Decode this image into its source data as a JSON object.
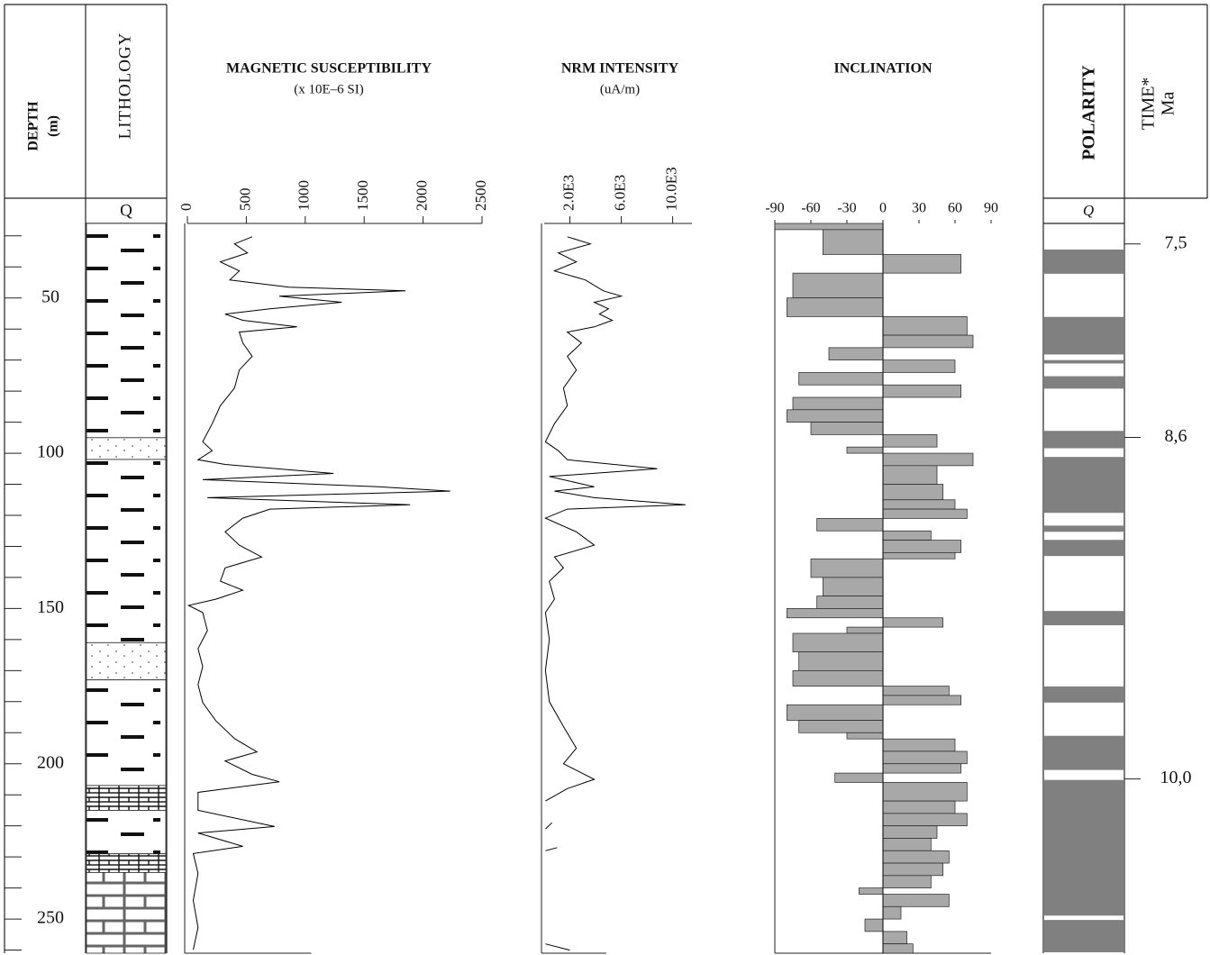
{
  "chart_data": [
    {
      "type": "depth",
      "title": "DEPTH",
      "subtitle": "(m)",
      "ylim": [
        26,
        261
      ],
      "yticks": [
        50,
        100,
        150,
        200,
        250
      ],
      "yminorticks": [
        30,
        40,
        60,
        70,
        80,
        90,
        110,
        120,
        130,
        140,
        160,
        170,
        180,
        190,
        210,
        220,
        230,
        240,
        260
      ]
    },
    {
      "type": "lithology",
      "title": "LITHOLOGY",
      "label": "Q",
      "layers": [
        {
          "top": 26,
          "bottom": 95,
          "pattern": "clay"
        },
        {
          "top": 95,
          "bottom": 102,
          "pattern": "sand"
        },
        {
          "top": 102,
          "bottom": 161,
          "pattern": "clay"
        },
        {
          "top": 161,
          "bottom": 173,
          "pattern": "sand"
        },
        {
          "top": 173,
          "bottom": 207,
          "pattern": "clay"
        },
        {
          "top": 207,
          "bottom": 215,
          "pattern": "limestone"
        },
        {
          "top": 215,
          "bottom": 229,
          "pattern": "clay"
        },
        {
          "top": 229,
          "bottom": 235,
          "pattern": "limestone"
        },
        {
          "top": 235,
          "bottom": 261,
          "pattern": "dolomite"
        }
      ]
    },
    {
      "type": "line",
      "title": "MAGNETIC SUSCEPTIBILITY",
      "subtitle": "(x 10E–6 SI)",
      "color": "#000000",
      "xlim": [
        0,
        2500
      ],
      "xticks": [
        0,
        500,
        1000,
        1500,
        2000,
        2500
      ],
      "depth": [
        30.3,
        32.6,
        35.5,
        38.4,
        41.3,
        44.2,
        46.5,
        47.7,
        49.4,
        51.4,
        53.5,
        55.2,
        57.2,
        59.3,
        61.0,
        64.5,
        68.8,
        73.2,
        79.0,
        84.7,
        90.5,
        96.3,
        99.2,
        102.1,
        103.6,
        106.5,
        108.5,
        110.8,
        112.2,
        114.3,
        116.6,
        118.0,
        120.9,
        125.3,
        129.6,
        133.4,
        136.9,
        141.2,
        144.1,
        147.0,
        149.0,
        151.3,
        157.1,
        162.9,
        168.7,
        174.5,
        180.3,
        186.1,
        191.9,
        196.2,
        199.1,
        203.4,
        205.8,
        209.2,
        215.0,
        220.2,
        222.3,
        226.6,
        228.9,
        235.3,
        244.0,
        252.7,
        259.9
      ],
      "values": [
        550,
        400,
        510,
        280,
        440,
        360,
        860,
        1850,
        780,
        1310,
        700,
        320,
        470,
        930,
        440,
        470,
        550,
        440,
        400,
        280,
        210,
        130,
        210,
        90,
        320,
        1240,
        130,
        1620,
        2230,
        170,
        1890,
        700,
        470,
        320,
        440,
        630,
        320,
        280,
        470,
        240,
        10,
        130,
        170,
        90,
        130,
        90,
        130,
        240,
        400,
        590,
        320,
        550,
        780,
        90,
        90,
        740,
        90,
        470,
        50,
        90,
        50,
        90,
        50
      ]
    },
    {
      "type": "line",
      "title": "NRM INTENSITY",
      "subtitle": "(uA/m)",
      "color": "#000000",
      "xlim": [
        0,
        11500
      ],
      "xticks": [
        {
          "value": 2000,
          "label": "2.0E3"
        },
        {
          "value": 6000,
          "label": "6.0E3"
        },
        {
          "value": 10000,
          "label": "10.0E3"
        }
      ],
      "depth": [
        30.3,
        32.6,
        35.5,
        38.4,
        41.3,
        44.2,
        47.7,
        49.4,
        51.4,
        53.5,
        55.2,
        57.2,
        59.3,
        61.0,
        64.5,
        68.8,
        73.2,
        79.0,
        84.7,
        90.5,
        96.3,
        99.2,
        102.1,
        105.0,
        107.5,
        110.8,
        112.2,
        114.3,
        116.6,
        118.0,
        120.9,
        125.3,
        129.6,
        133.4,
        136.9,
        141.2,
        147.0,
        151.3,
        160,
        170,
        180,
        188,
        195,
        200,
        205,
        208,
        212,
        215,
        219,
        221,
        224,
        227,
        228,
        240,
        258,
        260
      ],
      "values": [
        1800,
        3600,
        1100,
        2500,
        800,
        3200,
        4600,
        6000,
        3900,
        5000,
        4300,
        5300,
        3900,
        1800,
        2900,
        1800,
        2500,
        1500,
        1800,
        800,
        100,
        1100,
        1800,
        8800,
        400,
        3900,
        800,
        3900,
        11000,
        1800,
        100,
        2500,
        3900,
        800,
        1500,
        400,
        800,
        100,
        400,
        100,
        400,
        1500,
        2500,
        1500,
        3900,
        1800,
        100,
        null,
        600,
        100,
        null,
        1000,
        100,
        null,
        100,
        2000
      ]
    },
    {
      "type": "step",
      "title": "INCLINATION",
      "color": "#a8a8a8",
      "xlim": [
        -90,
        90
      ],
      "xticks": [
        -90,
        -60,
        -30,
        0,
        30,
        60,
        90
      ],
      "depth": [
        26,
        28,
        36,
        42,
        50,
        56,
        62,
        66,
        70,
        74,
        78,
        82,
        86,
        90,
        94,
        98,
        100,
        104,
        110,
        115,
        118,
        121,
        125,
        128,
        132,
        134,
        140,
        146,
        150,
        153,
        156,
        158,
        164,
        170,
        175,
        178,
        181,
        186,
        190,
        192,
        196,
        200,
        203,
        206,
        212,
        216,
        220,
        224,
        228,
        232,
        236,
        240,
        242,
        246,
        250,
        254,
        258
      ],
      "values": [
        -90,
        -50,
        65,
        -75,
        -80,
        70,
        75,
        -45,
        60,
        -70,
        65,
        -75,
        -80,
        -60,
        45,
        -30,
        75,
        45,
        50,
        60,
        70,
        -55,
        40,
        65,
        60,
        -60,
        -50,
        -55,
        -80,
        50,
        -30,
        -75,
        -70,
        -75,
        55,
        65,
        -80,
        -70,
        -30,
        60,
        70,
        65,
        -40,
        70,
        60,
        70,
        45,
        40,
        55,
        50,
        40,
        -20,
        55,
        15,
        -15,
        20,
        25
      ]
    },
    {
      "type": "polarity",
      "title": "POLARITY",
      "label": "Q",
      "color": "#808080",
      "normal": [
        [
          34.4,
          42.2
        ],
        [
          56.1,
          68.2
        ],
        [
          70.0,
          71.1
        ],
        [
          75.2,
          79.2
        ],
        [
          92.8,
          98.4
        ],
        [
          101.2,
          119.2
        ],
        [
          123.3,
          125.3
        ],
        [
          127.9,
          133.1
        ],
        [
          150.8,
          155.4
        ],
        [
          175.1,
          180.3
        ],
        [
          191.0,
          202.0
        ],
        [
          205.2,
          248.9
        ],
        [
          250.3,
          260.7
        ]
      ],
      "time_title": "TIME*",
      "time_unit": "Ma",
      "time_ticks": [
        {
          "value": 7.5,
          "label": "7,5",
          "depth": 32.6
        },
        {
          "value": 8.6,
          "label": "8,6",
          "depth": 94.9
        },
        {
          "value": 10.0,
          "label": "10,0",
          "depth": 204.9
        }
      ]
    }
  ]
}
